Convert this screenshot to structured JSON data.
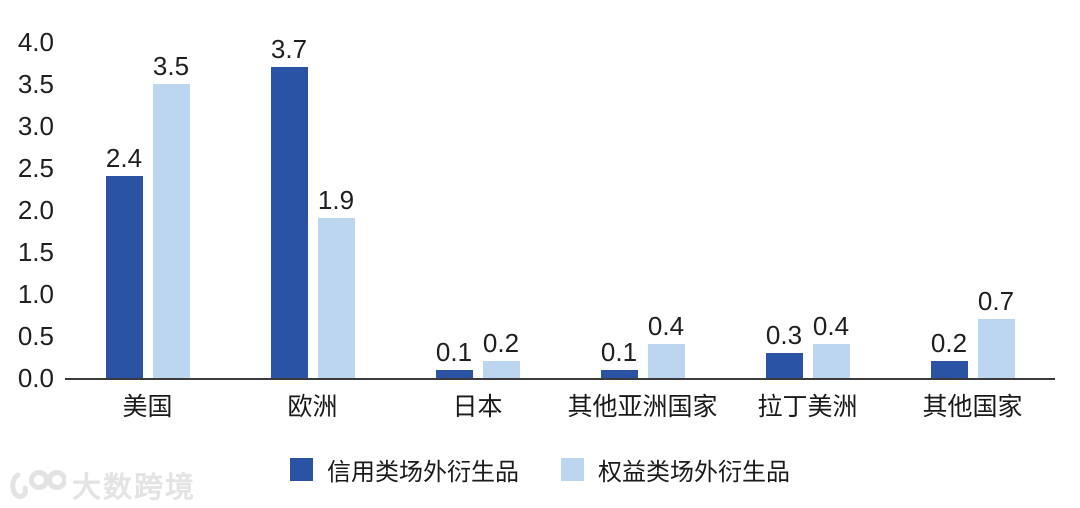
{
  "chart_data": {
    "type": "bar",
    "categories": [
      "美国",
      "欧洲",
      "日本",
      "其他亚洲国家",
      "拉丁美洲",
      "其他国家"
    ],
    "series": [
      {
        "name": "信用类场外衍生品",
        "color": "#2B53A3",
        "values": [
          2.4,
          3.7,
          0.1,
          0.1,
          0.3,
          0.2
        ]
      },
      {
        "name": "权益类场外衍生品",
        "color": "#BDD6F0",
        "values": [
          3.5,
          1.9,
          0.2,
          0.4,
          0.4,
          0.7
        ]
      }
    ],
    "value_labels": [
      "2.4",
      "3.7",
      "0.1",
      "0.1",
      "0.3",
      "0.2",
      "3.5",
      "1.9",
      "0.2",
      "0.4",
      "0.4",
      "0.7"
    ],
    "yticks": [
      0.0,
      0.5,
      1.0,
      1.5,
      2.0,
      2.5,
      3.0,
      3.5,
      4.0
    ],
    "ylim": [
      0,
      4.0
    ],
    "title": "",
    "xlabel": "",
    "ylabel": "",
    "grid": false,
    "legend_position": "bottom"
  },
  "colors": {
    "series_dark": "#2B53A3",
    "series_light": "#BDD6F0",
    "axis_line": "#3b3b3b",
    "text": "#1f1f1f",
    "watermark": "#e3e3e3"
  },
  "watermark": {
    "text": "大数跨境",
    "logo": "100-logo"
  }
}
